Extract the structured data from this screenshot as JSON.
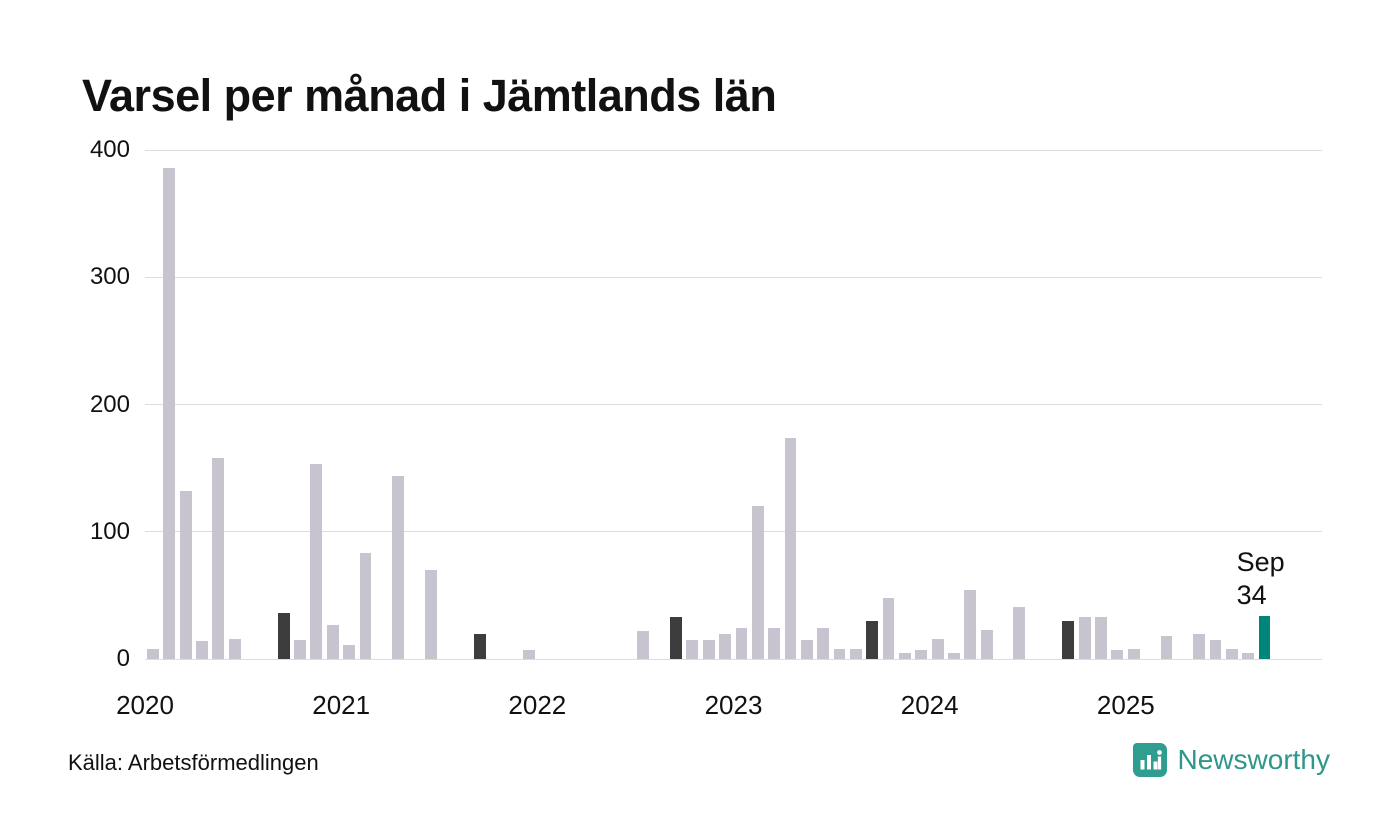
{
  "title": "Varsel per månad i Jämtlands län",
  "source": "Källa: Arbetsförmedlingen",
  "branding": {
    "name": "Newsworthy",
    "icon": "newsworthy-logo",
    "icon_color": "#2f9e90",
    "text_color": "#2f968b"
  },
  "annotation": {
    "label": "Sep",
    "value": "34"
  },
  "colors": {
    "bar_default": "#c7c3cf",
    "bar_september": "#3d3d3d",
    "bar_current": "#00857b",
    "gridline": "#dddddd",
    "axis_text": "#111111"
  },
  "chart_data": {
    "type": "bar",
    "title": "Varsel per månad i Jämtlands län",
    "x_unit": "month",
    "start_month": "2020-01",
    "end_month": "2025-09",
    "x_axis_ticks": [
      "2020",
      "2021",
      "2022",
      "2023",
      "2024",
      "2025"
    ],
    "y_axis_ticks": [
      0,
      100,
      200,
      300,
      400
    ],
    "ylim": [
      0,
      400
    ],
    "grid": "horizontal",
    "values": [
      8,
      386,
      132,
      14,
      158,
      16,
      0,
      0,
      36,
      15,
      153,
      27,
      11,
      83,
      0,
      144,
      0,
      70,
      0,
      0,
      20,
      0,
      0,
      7,
      0,
      0,
      0,
      0,
      0,
      0,
      22,
      0,
      33,
      15,
      15,
      20,
      24,
      120,
      24,
      174,
      15,
      24,
      8,
      8,
      30,
      48,
      5,
      7,
      16,
      5,
      54,
      23,
      0,
      41,
      0,
      0,
      30,
      33,
      33,
      7,
      8,
      0,
      18,
      0,
      20,
      15,
      8,
      5,
      34
    ],
    "highlight_rule": "September bars dark gray; latest bar (Sep 2025) teal with annotation",
    "latest": {
      "month": "Sep",
      "value": 34
    }
  }
}
